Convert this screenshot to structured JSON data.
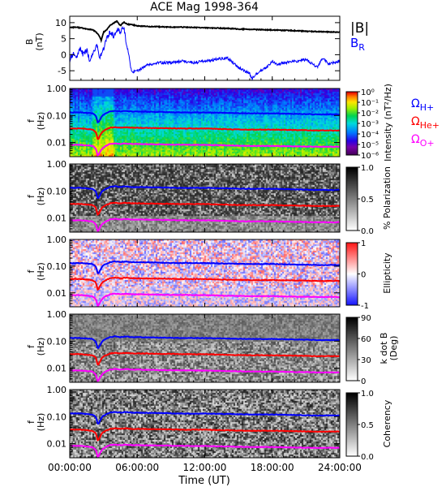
{
  "chart_data": {
    "title": "ACE Mag 1998-364",
    "x_axis": {
      "label": "Time (UT)",
      "range_hours": [
        0,
        24
      ],
      "ticks": [
        0,
        6,
        12,
        18,
        24
      ],
      "tick_labels": [
        "00:00:00",
        "06:00:00",
        "12:00:00",
        "18:00:00",
        "24:00:00"
      ]
    },
    "panels": [
      {
        "type": "line",
        "ylabel": "B (nT)",
        "ylabel_main": "B",
        "ylabel_unit": "(nT)",
        "ylim": [
          -8,
          12
        ],
        "yticks": [
          10,
          5,
          0,
          -5
        ],
        "ytick_labels": [
          "10",
          "5",
          "0",
          "-5"
        ],
        "series": [
          {
            "name": "|B|",
            "color": "#000000",
            "x": [
              0,
              0.5,
              1,
              1.5,
              2,
              2.3,
              2.6,
              2.8,
              3.0,
              3.3,
              3.6,
              3.9,
              4.2,
              4.5,
              4.8,
              5.1,
              5.5,
              6,
              6.5,
              7,
              8,
              9,
              10,
              11,
              12,
              13,
              14,
              15,
              16,
              17,
              18,
              19,
              20,
              21,
              22,
              23,
              24
            ],
            "y": [
              8.5,
              8.6,
              8.4,
              8.0,
              7.8,
              7.2,
              6.0,
              4.5,
              7.0,
              7.8,
              9.2,
              9.8,
              10.5,
              9.0,
              10.2,
              9.5,
              9.4,
              9.0,
              8.9,
              8.8,
              8.7,
              8.6,
              8.6,
              8.5,
              8.4,
              8.3,
              8.2,
              8.0,
              7.9,
              7.8,
              7.7,
              7.6,
              7.5,
              7.3,
              7.2,
              7.1,
              7.0
            ]
          },
          {
            "name": "B_R",
            "color": "#0000ff",
            "x": [
              0,
              0.3,
              0.6,
              0.9,
              1.2,
              1.5,
              1.8,
              2.1,
              2.4,
              2.7,
              3.0,
              3.3,
              3.6,
              3.9,
              4.2,
              4.5,
              4.8,
              5.0,
              5.2,
              5.5,
              6,
              6.5,
              7,
              8,
              9,
              10,
              11,
              12,
              13,
              14,
              14.5,
              15,
              15.5,
              16,
              16.2,
              16.5,
              17,
              17.5,
              18,
              18.5,
              19,
              20,
              21,
              22,
              22.5,
              23,
              24
            ],
            "y": [
              -2,
              0.5,
              -1,
              2,
              0,
              1.5,
              -2,
              1,
              3,
              -1,
              2,
              5,
              7,
              6,
              8,
              7,
              9,
              4,
              1,
              -5.5,
              -5,
              -4,
              -3,
              -2.5,
              -2.5,
              -2,
              -2.5,
              -2,
              -1.5,
              -1,
              -2.5,
              -4,
              -5,
              -6,
              -7.5,
              -6,
              -5,
              -4,
              -2,
              -3,
              -2.5,
              -2,
              -1.5,
              -4,
              -1,
              -3,
              -2
            ]
          }
        ]
      },
      {
        "type": "heatmap",
        "kind": "intensity",
        "ylabel_main": "f",
        "ylabel_unit": "(Hz)",
        "ylim_log": [
          0.003,
          1.0
        ],
        "yticks": [
          1.0,
          0.1,
          0.01
        ],
        "ytick_labels": [
          "1.00",
          "0.10",
          "0.01"
        ],
        "colorbar": {
          "label": "Intensity (nT²/Hz)",
          "tick_labels": [
            "10⁰",
            "10⁻¹",
            "10⁻²",
            "10⁻³",
            "10⁻⁴",
            "10⁻⁵",
            "10⁻⁶"
          ],
          "colormap": "rainbow"
        },
        "legend": [
          {
            "name": "ΩH+",
            "base": "Ω",
            "sub": "H+",
            "color": "#0000ff"
          },
          {
            "name": "ΩHe+",
            "base": "Ω",
            "sub": "He+",
            "color": "#ff0000"
          },
          {
            "name": "ΩO+",
            "base": "Ω",
            "sub": "O+",
            "color": "#ff00ff"
          }
        ]
      },
      {
        "type": "heatmap",
        "kind": "polarization",
        "ylabel_main": "f",
        "ylabel_unit": "(Hz)",
        "ylim_log": [
          0.003,
          1.0
        ],
        "yticks": [
          1.0,
          0.1,
          0.01
        ],
        "ytick_labels": [
          "1.00",
          "0.10",
          "0.01"
        ],
        "colorbar": {
          "label": "% Polarization",
          "tick_labels": [
            "1.0",
            "0.5",
            "0.0"
          ],
          "colormap": "gray"
        }
      },
      {
        "type": "heatmap",
        "kind": "ellipticity",
        "ylabel_main": "f",
        "ylabel_unit": "(Hz)",
        "ylim_log": [
          0.003,
          1.0
        ],
        "yticks": [
          1.0,
          0.1,
          0.01
        ],
        "ytick_labels": [
          "1.00",
          "0.10",
          "0.01"
        ],
        "colorbar": {
          "label": "Ellipticity",
          "tick_labels": [
            "1",
            "0",
            "-1"
          ],
          "colormap": "blue-white-red"
        }
      },
      {
        "type": "heatmap",
        "kind": "kdotb",
        "ylabel_main": "f",
        "ylabel_unit": "(Hz)",
        "ylim_log": [
          0.003,
          1.0
        ],
        "yticks": [
          1.0,
          0.1,
          0.01
        ],
        "ytick_labels": [
          "1.00",
          "0.10",
          "0.01"
        ],
        "colorbar": {
          "label": "k dot B (Deg)",
          "label_line1": "k dot B",
          "label_line2": "(Deg)",
          "tick_labels": [
            "90",
            "60",
            "30",
            "0"
          ],
          "colormap": "gray"
        }
      },
      {
        "type": "heatmap",
        "kind": "coherency",
        "ylabel_main": "f",
        "ylabel_unit": "(Hz)",
        "ylim_log": [
          0.003,
          1.0
        ],
        "yticks": [
          1.0,
          0.1,
          0.01
        ],
        "ytick_labels": [
          "1.00",
          "0.10",
          "0.01"
        ],
        "colorbar": {
          "label": "Coherency",
          "tick_labels": [
            "1.0",
            "0.5",
            "0.0"
          ],
          "colormap": "gray"
        }
      }
    ],
    "gyrofrequency_lines": {
      "x": [
        0,
        1,
        2,
        2.3,
        2.5,
        2.7,
        2.9,
        3.2,
        3.6,
        4.0,
        4.5,
        5.0,
        5.5,
        6,
        8,
        10,
        12,
        14,
        16,
        18,
        20,
        22,
        24
      ],
      "H+": [
        0.13,
        0.13,
        0.12,
        0.1,
        0.05,
        0.07,
        0.1,
        0.12,
        0.14,
        0.15,
        0.14,
        0.15,
        0.14,
        0.14,
        0.135,
        0.13,
        0.13,
        0.125,
        0.12,
        0.12,
        0.115,
        0.11,
        0.11
      ],
      "He+": [
        0.033,
        0.033,
        0.03,
        0.025,
        0.012,
        0.018,
        0.025,
        0.03,
        0.035,
        0.037,
        0.035,
        0.037,
        0.035,
        0.035,
        0.034,
        0.033,
        0.033,
        0.031,
        0.03,
        0.03,
        0.029,
        0.028,
        0.028
      ],
      "O+": [
        0.0082,
        0.0082,
        0.0075,
        0.006,
        0.003,
        0.0045,
        0.006,
        0.0075,
        0.0088,
        0.0093,
        0.0088,
        0.0093,
        0.0088,
        0.0088,
        0.0085,
        0.0083,
        0.0082,
        0.0078,
        0.0075,
        0.0075,
        0.0072,
        0.007,
        0.007
      ]
    }
  }
}
